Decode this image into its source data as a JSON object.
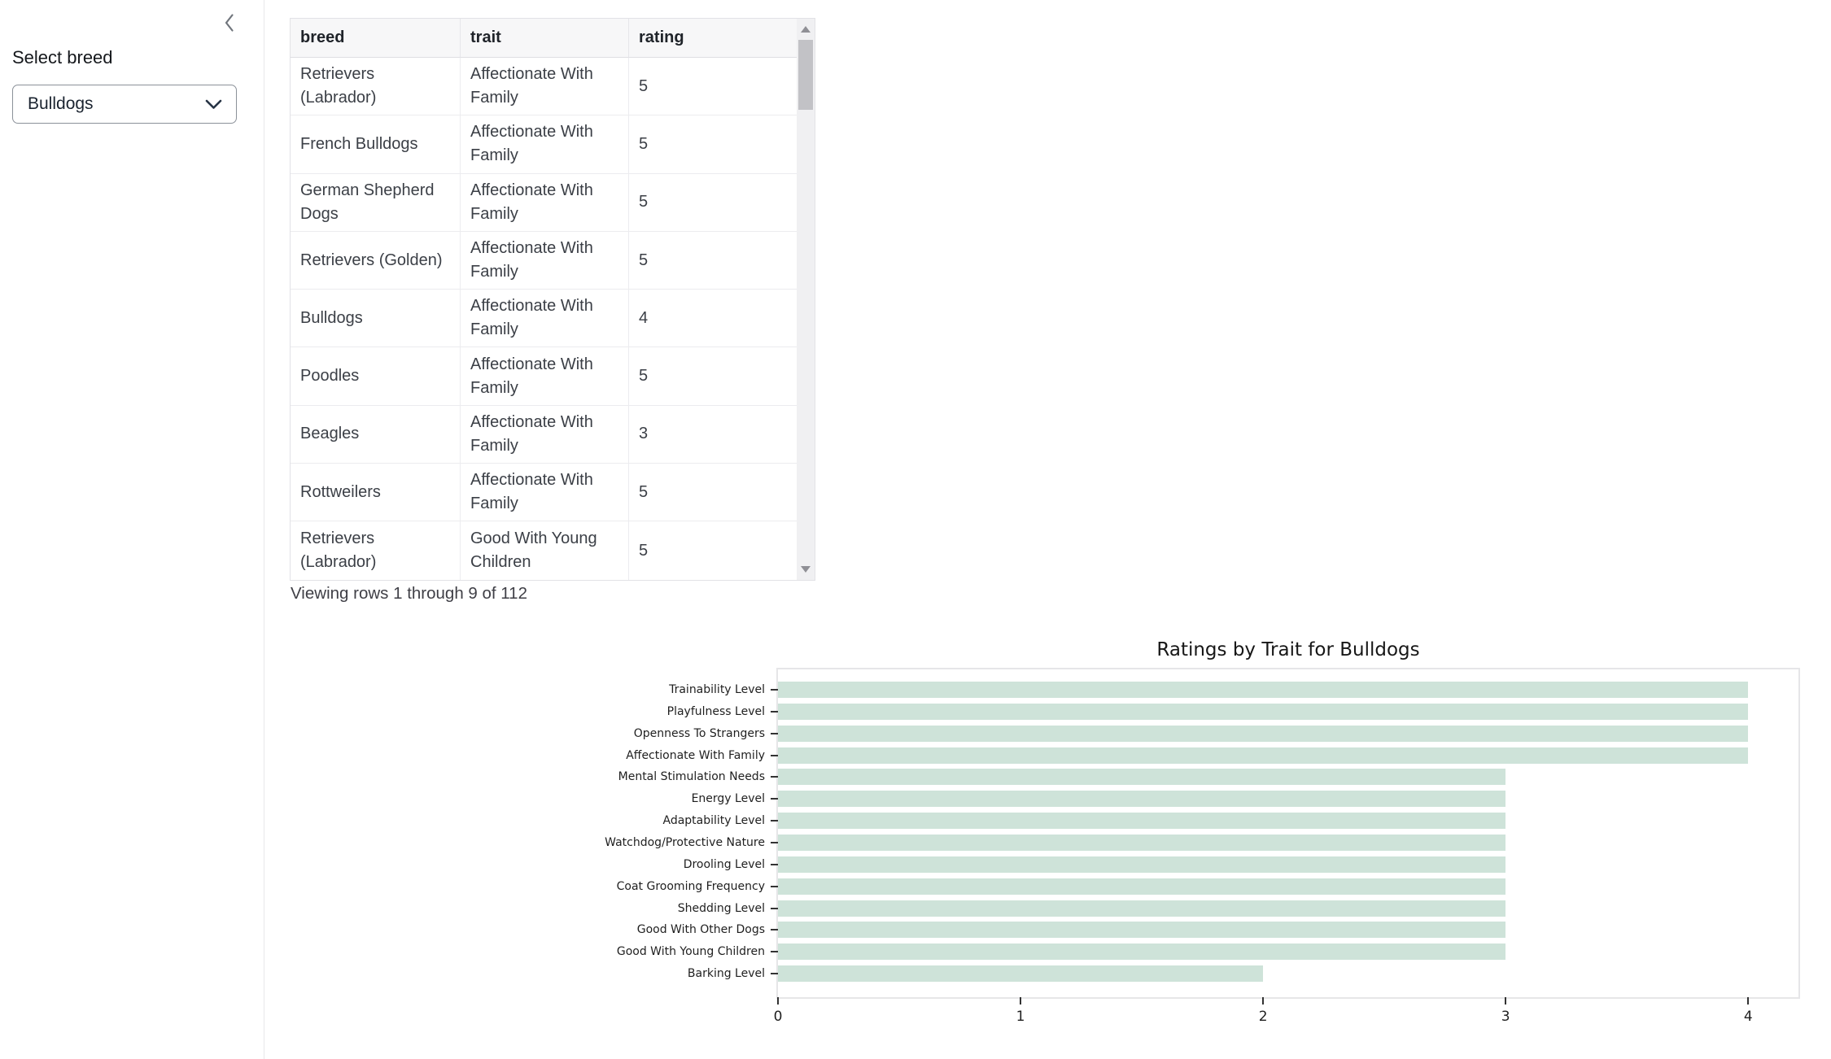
{
  "sidebar": {
    "select_label": "Select breed",
    "select_value": "Bulldogs",
    "collapse_icon": "chevron-left-icon"
  },
  "table": {
    "columns": [
      "breed",
      "trait",
      "rating"
    ],
    "rows": [
      [
        "Retrievers (Labrador)",
        "Affectionate With Family",
        "5"
      ],
      [
        "French Bulldogs",
        "Affectionate With Family",
        "5"
      ],
      [
        "German Shepherd Dogs",
        "Affectionate With Family",
        "5"
      ],
      [
        "Retrievers (Golden)",
        "Affectionate With Family",
        "5"
      ],
      [
        "Bulldogs",
        "Affectionate With Family",
        "4"
      ],
      [
        "Poodles",
        "Affectionate With Family",
        "5"
      ],
      [
        "Beagles",
        "Affectionate With Family",
        "3"
      ],
      [
        "Rottweilers",
        "Affectionate With Family",
        "5"
      ],
      [
        "Retrievers (Labrador)",
        "Good With Young Children",
        "5"
      ]
    ],
    "caption": "Viewing rows 1 through 9 of 112"
  },
  "chart_data": {
    "type": "bar",
    "orientation": "horizontal",
    "title": "Ratings by Trait for Bulldogs",
    "xlabel": "",
    "ylabel": "",
    "categories": [
      "Trainability Level",
      "Playfulness Level",
      "Openness To Strangers",
      "Affectionate With Family",
      "Mental Stimulation Needs",
      "Energy Level",
      "Adaptability Level",
      "Watchdog/Protective Nature",
      "Drooling Level",
      "Coat Grooming Frequency",
      "Shedding Level",
      "Good With Other Dogs",
      "Good With Young Children",
      "Barking Level"
    ],
    "values": [
      4,
      4,
      4,
      4,
      3,
      3,
      3,
      3,
      3,
      3,
      3,
      3,
      3,
      2
    ],
    "xticks": [
      0,
      1,
      2,
      3,
      4
    ],
    "xlim": [
      0,
      4.207
    ],
    "grid": false,
    "legend": false,
    "bar_color": "#cee3d9"
  },
  "colors": {
    "bar": "#cee3d9",
    "table_header_bg": "#f7f7f8",
    "border": "#e2e2e6",
    "scroll_thumb": "#c2c2c6",
    "text_dark": "#1f2329"
  }
}
